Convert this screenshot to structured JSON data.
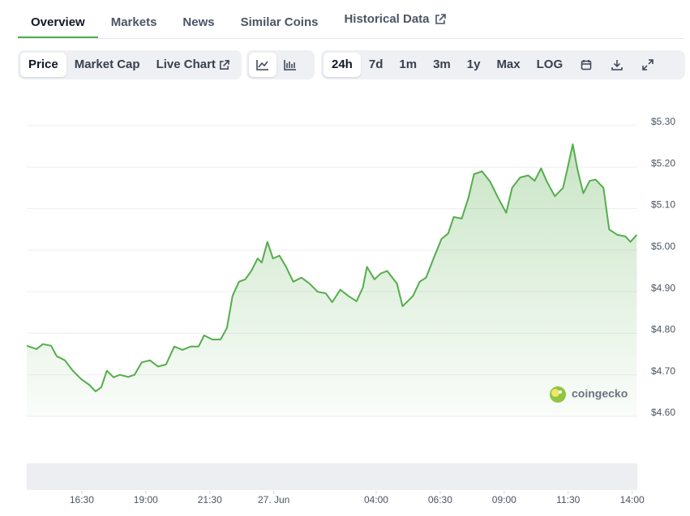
{
  "tabs": [
    "Overview",
    "Markets",
    "News",
    "Similar Coins",
    "Historical Data"
  ],
  "chart_buttons": [
    "Price",
    "Market Cap",
    "Live Chart"
  ],
  "range_buttons": [
    "24h",
    "7d",
    "1m",
    "3m",
    "1y",
    "Max",
    "LOG"
  ],
  "watermark": "coingecko",
  "chart_data": {
    "type": "line",
    "color": "#55ad4c",
    "x": [
      14.35,
      14.73,
      14.98,
      15.3,
      15.52,
      15.84,
      16.15,
      16.47,
      16.79,
      17.04,
      17.26,
      17.48,
      17.74,
      17.99,
      18.31,
      18.56,
      18.84,
      19.16,
      19.48,
      19.79,
      20.11,
      20.43,
      20.75,
      21.06,
      21.28,
      21.6,
      21.92,
      22.17,
      22.39,
      22.64,
      22.89,
      23.12,
      23.37,
      23.53,
      23.75,
      23.97,
      24.22,
      24.48,
      24.76,
      25.08,
      25.39,
      25.71,
      26.03,
      26.28,
      26.6,
      26.91,
      27.23,
      27.48,
      27.64,
      27.93,
      28.18,
      28.43,
      28.81,
      29.03,
      29.44,
      29.7,
      29.95,
      30.24,
      30.55,
      30.81,
      31.03,
      31.34,
      31.6,
      31.82,
      32.13,
      32.45,
      32.77,
      33.08,
      33.31,
      33.62,
      33.94,
      34.19,
      34.44,
      34.67,
      34.98,
      35.3,
      35.46,
      35.68,
      35.87,
      36.09,
      36.34,
      36.57,
      36.88,
      37.1,
      37.42,
      37.74,
      37.93,
      38.18
    ],
    "values": [
      4.77,
      4.762,
      4.774,
      4.77,
      4.745,
      4.735,
      4.71,
      4.69,
      4.676,
      4.66,
      4.67,
      4.71,
      4.694,
      4.7,
      4.695,
      4.7,
      4.73,
      4.735,
      4.72,
      4.725,
      4.768,
      4.76,
      4.768,
      4.768,
      4.795,
      4.785,
      4.785,
      4.813,
      4.89,
      4.924,
      4.93,
      4.95,
      4.98,
      4.97,
      5.02,
      4.98,
      4.987,
      4.96,
      4.924,
      4.934,
      4.92,
      4.9,
      4.896,
      4.875,
      4.905,
      4.89,
      4.877,
      4.91,
      4.96,
      4.93,
      4.944,
      4.95,
      4.92,
      4.865,
      4.89,
      4.924,
      4.934,
      4.98,
      5.027,
      5.04,
      5.08,
      5.076,
      5.125,
      5.183,
      5.19,
      5.165,
      5.125,
      5.09,
      5.15,
      5.175,
      5.18,
      5.167,
      5.197,
      5.165,
      5.13,
      5.15,
      5.193,
      5.255,
      5.193,
      5.137,
      5.167,
      5.17,
      5.15,
      5.05,
      5.037,
      5.033,
      5.02,
      5.037
    ],
    "xlim": [
      14.35,
      38.2
    ],
    "xticks": [
      {
        "value": 16.5,
        "label": "16:30"
      },
      {
        "value": 19,
        "label": "19:00"
      },
      {
        "value": 21.5,
        "label": "21:30"
      },
      {
        "value": 24,
        "label": "27. Jun"
      },
      {
        "value": 28,
        "label": "04:00"
      },
      {
        "value": 30.5,
        "label": "06:30"
      },
      {
        "value": 33,
        "label": "09:00"
      },
      {
        "value": 35.5,
        "label": "11:30"
      },
      {
        "value": 38,
        "label": "14:00"
      }
    ],
    "ylim": [
      4.6,
      5.3
    ],
    "yticks": [
      {
        "value": 4.6,
        "label": "$4.60"
      },
      {
        "value": 4.7,
        "label": "$4.70"
      },
      {
        "value": 4.8,
        "label": "$4.80"
      },
      {
        "value": 4.9,
        "label": "$4.90"
      },
      {
        "value": 5.0,
        "label": "$5.00"
      },
      {
        "value": 5.1,
        "label": "$5.10"
      },
      {
        "value": 5.2,
        "label": "$5.20"
      },
      {
        "value": 5.3,
        "label": "$5.30"
      }
    ],
    "grid": true
  }
}
